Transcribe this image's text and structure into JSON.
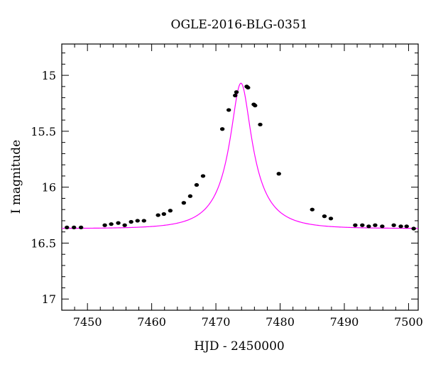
{
  "chart_data": {
    "type": "scatter",
    "title": "OGLE-2016-BLG-0351",
    "xlabel": "HJD - 2450000",
    "ylabel": "I magnitude",
    "xlim": [
      7446,
      7501.5
    ],
    "ylim": [
      17.1,
      14.72
    ],
    "y_inverted": true,
    "x_ticks": [
      7450,
      7460,
      7470,
      7480,
      7490,
      7500
    ],
    "x_tick_labels": [
      "7450",
      "7460",
      "7470",
      "7480",
      "7490",
      "7500"
    ],
    "y_ticks": [
      15,
      15.5,
      16,
      16.5,
      17
    ],
    "y_tick_labels": [
      "15",
      "15.5",
      "16",
      "16.5",
      "17"
    ],
    "grid": false,
    "colors": {
      "points": "#000000",
      "model": "#ff00ff",
      "frame": "#000000"
    },
    "series": [
      {
        "kind": "points",
        "x": [
          7446.8,
          7447.9,
          7449.0,
          7452.7,
          7453.7,
          7454.8,
          7455.8,
          7456.8,
          7457.8,
          7458.8,
          7461.0,
          7461.9,
          7462.9,
          7465.0,
          7466.0,
          7467.0,
          7468.0,
          7471.0,
          7472.0,
          7473.0,
          7473.2,
          7474.8,
          7475.0,
          7475.9,
          7476.1,
          7476.9,
          7479.8,
          7485.0,
          7486.9,
          7487.9,
          7491.7,
          7492.8,
          7493.8,
          7494.8,
          7495.9,
          7497.7,
          7498.8,
          7499.7,
          7500.8
        ],
        "y": [
          16.36,
          16.36,
          16.36,
          16.34,
          16.33,
          16.32,
          16.34,
          16.31,
          16.3,
          16.3,
          16.25,
          16.24,
          16.21,
          16.14,
          16.08,
          15.98,
          15.9,
          15.48,
          15.31,
          15.18,
          15.15,
          15.1,
          15.11,
          15.26,
          15.27,
          15.44,
          15.88,
          16.2,
          16.26,
          16.28,
          16.34,
          16.34,
          16.35,
          16.34,
          16.35,
          16.34,
          16.35,
          16.35,
          16.37
        ]
      },
      {
        "kind": "model",
        "baseline": 16.37,
        "peak": 15.07,
        "t0": 7473.9,
        "tE": 6.1,
        "u0": 0.27
      }
    ]
  }
}
